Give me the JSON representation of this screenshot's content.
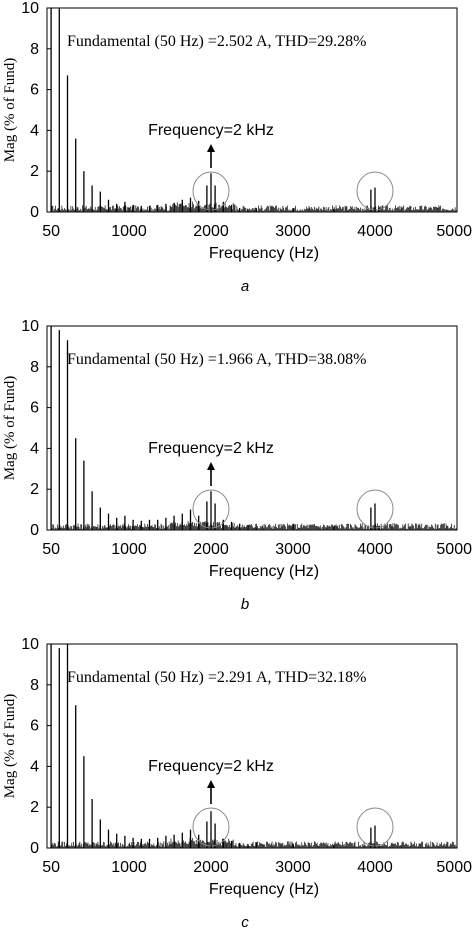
{
  "chart_data": [
    {
      "type": "bar",
      "panel_label": "a",
      "annotation": "Fundamental (50 Hz) =2.502 A, THD=29.28%",
      "callout": "Frequency=2 kHz",
      "xlabel": "Frequency (Hz)",
      "ylabel": "Mag (% of Fund)",
      "xlim": [
        0,
        5000
      ],
      "ylim": [
        0,
        10
      ],
      "xticks": [
        50,
        1000,
        2000,
        3000,
        4000,
        5000
      ],
      "xtick_labels": [
        "50",
        "1000",
        "2000",
        "3000",
        "4000",
        "5000"
      ],
      "yticks": [
        0,
        2,
        4,
        6,
        8,
        10
      ],
      "ytick_labels": [
        "0",
        "2",
        "4",
        "6",
        "8",
        "10"
      ],
      "circles_at_hz": [
        2000,
        4000
      ],
      "harmonics": {
        "x": [
          50,
          150,
          250,
          350,
          450,
          550,
          650,
          750,
          850,
          950,
          1050,
          1150,
          1250,
          1350,
          1450,
          1550,
          1650,
          1750,
          1850,
          1950,
          2000,
          2050,
          2150,
          2250,
          2350,
          2450,
          2550,
          3000,
          3500,
          3950,
          4000,
          4050
        ],
        "y": [
          10,
          10,
          6.7,
          3.6,
          2.0,
          1.3,
          1.0,
          0.6,
          0.4,
          0.5,
          0.35,
          0.3,
          0.3,
          0.35,
          0.4,
          0.45,
          0.6,
          0.7,
          0.55,
          1.3,
          1.9,
          1.3,
          0.5,
          0.35,
          0.2,
          0.15,
          0.2,
          0.15,
          0.15,
          1.1,
          1.2,
          0.2
        ]
      }
    },
    {
      "type": "bar",
      "panel_label": "b",
      "annotation": "Fundamental (50 Hz) =1.966 A, THD=38.08%",
      "callout": "Frequency=2 kHz",
      "xlabel": "Frequency (Hz)",
      "ylabel": "Mag (% of Fund)",
      "xlim": [
        0,
        5000
      ],
      "ylim": [
        0,
        10
      ],
      "xticks": [
        50,
        1000,
        2000,
        3000,
        4000,
        5000
      ],
      "xtick_labels": [
        "50",
        "1000",
        "2000",
        "3000",
        "4000",
        "5000"
      ],
      "yticks": [
        0,
        2,
        4,
        6,
        8,
        10
      ],
      "ytick_labels": [
        "0",
        "2",
        "4",
        "6",
        "8",
        "10"
      ],
      "circles_at_hz": [
        2000,
        4000
      ],
      "harmonics": {
        "x": [
          50,
          150,
          250,
          350,
          450,
          550,
          650,
          750,
          850,
          950,
          1050,
          1150,
          1250,
          1350,
          1450,
          1550,
          1650,
          1750,
          1850,
          1950,
          2000,
          2050,
          2150,
          2250,
          2350,
          2450,
          2550,
          3000,
          3500,
          3950,
          4000,
          4050
        ],
        "y": [
          10,
          9.8,
          9.3,
          4.5,
          3.4,
          1.9,
          1.1,
          0.8,
          0.6,
          0.7,
          0.5,
          0.45,
          0.5,
          0.5,
          0.6,
          0.7,
          0.8,
          1.0,
          0.7,
          1.4,
          1.9,
          1.3,
          0.5,
          0.4,
          0.3,
          0.25,
          0.3,
          0.3,
          0.2,
          1.1,
          1.3,
          0.2
        ]
      }
    },
    {
      "type": "bar",
      "panel_label": "c",
      "annotation": "Fundamental (50 Hz) =2.291 A, THD=32.18%",
      "callout": "Frequency=2 kHz",
      "xlabel": "Frequency (Hz)",
      "ylabel": "Mag (% of Fund)",
      "xlim": [
        0,
        5000
      ],
      "ylim": [
        0,
        10
      ],
      "xticks": [
        50,
        1000,
        2000,
        3000,
        4000,
        5000
      ],
      "xtick_labels": [
        "50",
        "1000",
        "2000",
        "3000",
        "4000",
        "5000"
      ],
      "yticks": [
        0,
        2,
        4,
        6,
        8,
        10
      ],
      "ytick_labels": [
        "0",
        "2",
        "4",
        "6",
        "8",
        "10"
      ],
      "circles_at_hz": [
        2000,
        4000
      ],
      "harmonics": {
        "x": [
          50,
          150,
          250,
          350,
          450,
          550,
          650,
          750,
          850,
          950,
          1050,
          1150,
          1250,
          1350,
          1450,
          1550,
          1650,
          1750,
          1850,
          1950,
          2000,
          2050,
          2150,
          2250,
          2350,
          2450,
          2550,
          3000,
          3500,
          3950,
          4000,
          4050
        ],
        "y": [
          10,
          9.8,
          10,
          7.0,
          4.5,
          2.4,
          1.4,
          0.9,
          0.7,
          0.6,
          0.5,
          0.45,
          0.45,
          0.5,
          0.6,
          0.65,
          0.75,
          0.9,
          0.65,
          1.3,
          1.8,
          1.2,
          0.45,
          0.35,
          0.25,
          0.2,
          0.25,
          0.2,
          0.15,
          1.0,
          1.1,
          0.2
        ]
      }
    }
  ]
}
